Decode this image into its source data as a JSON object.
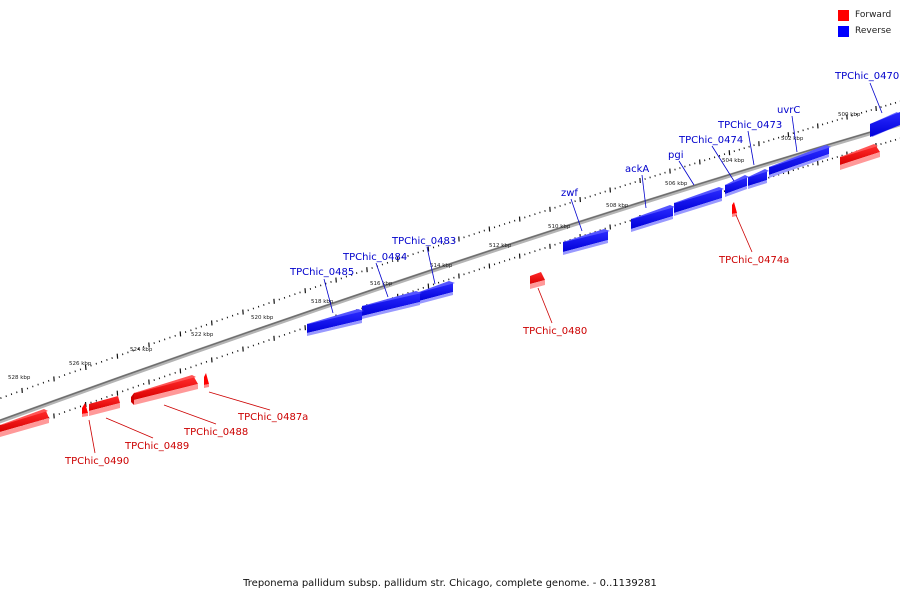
{
  "legend": {
    "forward_label": "Forward",
    "reverse_label": "Reverse",
    "forward_color": "#ff0000",
    "reverse_color": "#0000ff"
  },
  "footer": "Treponema pallidum subsp. pallidum str. Chicago, complete genome. - 0..1139281",
  "kbp_labels": [
    "500 kbp",
    "502 kbp",
    "504 kbp",
    "506 kbp",
    "508 kbp",
    "510 kbp",
    "512 kbp",
    "514 kbp",
    "516 kbp",
    "518 kbp",
    "520 kbp",
    "522 kbp",
    "524 kbp",
    "526 kbp",
    "528 kbp"
  ],
  "reverse_genes": [
    "TPChic_0470",
    "uvrC",
    "TPChic_0473",
    "TPChic_0474",
    "pgi",
    "ackA",
    "zwf",
    "TPChic_0483",
    "TPChic_0484",
    "TPChic_0485"
  ],
  "forward_genes": [
    "TPChic_0474a",
    "TPChic_0480",
    "TPChic_0487a",
    "TPChic_0488",
    "TPChic_0489",
    "TPChic_0490"
  ]
}
